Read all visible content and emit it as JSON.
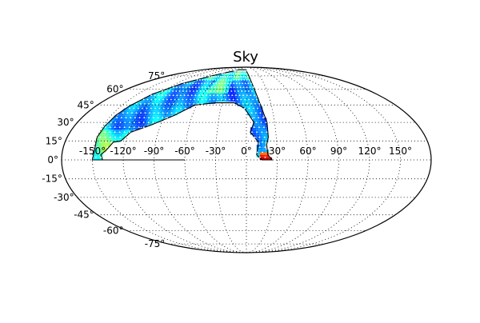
{
  "chart_data": {
    "type": "heatmap",
    "projection": "mollweide",
    "title": "Sky",
    "lon_ticks": [
      {
        "value": -150,
        "label": "-150°"
      },
      {
        "value": -120,
        "label": "-120°"
      },
      {
        "value": -90,
        "label": "-90°"
      },
      {
        "value": -60,
        "label": "-60°"
      },
      {
        "value": -30,
        "label": "-30°"
      },
      {
        "value": 0,
        "label": "0°"
      },
      {
        "value": 30,
        "label": "30°"
      },
      {
        "value": 60,
        "label": "60°"
      },
      {
        "value": 90,
        "label": "90°"
      },
      {
        "value": 120,
        "label": "120°"
      },
      {
        "value": 150,
        "label": "150°"
      }
    ],
    "lat_ticks": [
      {
        "value": 75,
        "label": "75°"
      },
      {
        "value": 60,
        "label": "60°"
      },
      {
        "value": 45,
        "label": "45°"
      },
      {
        "value": 30,
        "label": "30°"
      },
      {
        "value": 15,
        "label": "15°"
      },
      {
        "value": 0,
        "label": "0°"
      },
      {
        "value": -15,
        "label": "-15°"
      },
      {
        "value": -30,
        "label": "-30°"
      },
      {
        "value": -45,
        "label": "-45°"
      },
      {
        "value": -60,
        "label": "-60°"
      },
      {
        "value": -75,
        "label": "-75°"
      }
    ],
    "grid": true,
    "grid_style": "dotted",
    "colormap": "jet",
    "marker_color": "#ffffff",
    "region": {
      "lat_range": [
        0,
        84
      ],
      "lon_range": [
        -150,
        25
      ],
      "outline_color": "#000000"
    }
  }
}
